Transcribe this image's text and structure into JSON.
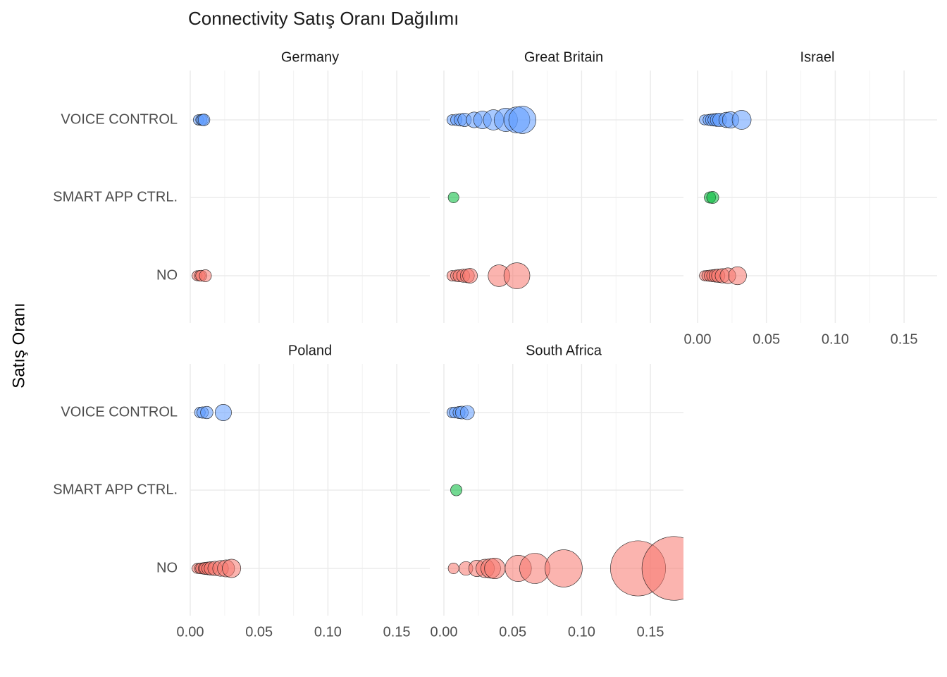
{
  "title": "Connectivity Satış Oranı Dağılımı",
  "ylabel": "Satış Oranı",
  "chart_data": [
    {
      "type": "scatter",
      "title": "Germany",
      "xlim": [
        0,
        0.174
      ],
      "xticks": [
        {
          "value": 0,
          "label": "0.00"
        },
        0.05,
        {
          "value": 0.1,
          "label": "0.10"
        },
        0.15
      ],
      "series": [
        {
          "name": "VOICE CONTROL",
          "color": "#619CFF",
          "values": [
            0.006,
            0.008,
            0.009,
            0.01
          ]
        },
        {
          "name": "SMART APP CTRL.",
          "color": "#00BA38",
          "values": []
        },
        {
          "name": "NO",
          "color": "#F8766D",
          "values": [
            0.005,
            0.007,
            0.008,
            0.011
          ]
        }
      ]
    },
    {
      "type": "scatter",
      "title": "Great Britain",
      "xlim": [
        0,
        0.174
      ],
      "xticks": [
        {
          "value": 0,
          "label": "0.00"
        },
        0.05,
        {
          "value": 0.1,
          "label": "0.10"
        },
        0.15
      ],
      "series": [
        {
          "name": "VOICE CONTROL",
          "color": "#619CFF",
          "values": [
            0.006,
            0.009,
            0.012,
            0.015,
            0.022,
            0.028,
            0.036,
            0.045,
            0.053,
            0.057
          ]
        },
        {
          "name": "SMART APP CTRL.",
          "color": "#00BA38",
          "values": [
            0.007
          ]
        },
        {
          "name": "NO",
          "color": "#F8766D",
          "values": [
            0.006,
            0.009,
            0.011,
            0.014,
            0.017,
            0.019,
            0.04,
            0.053
          ]
        }
      ]
    },
    {
      "type": "scatter",
      "title": "Israel",
      "xlim": [
        0,
        0.174
      ],
      "xticks": [
        {
          "value": 0,
          "label": "0.00"
        },
        0.05,
        {
          "value": 0.1,
          "label": "0.10"
        },
        0.15
      ],
      "series": [
        {
          "name": "VOICE CONTROL",
          "color": "#619CFF",
          "values": [
            0.005,
            0.008,
            0.01,
            0.012,
            0.014,
            0.016,
            0.021,
            0.024,
            0.032
          ]
        },
        {
          "name": "SMART APP CTRL.",
          "color": "#00BA38",
          "values": [
            0.009,
            0.011
          ]
        },
        {
          "name": "NO",
          "color": "#F8766D",
          "values": [
            0.005,
            0.007,
            0.009,
            0.011,
            0.013,
            0.015,
            0.018,
            0.022,
            0.029
          ]
        }
      ]
    },
    {
      "type": "scatter",
      "title": "Poland",
      "xlim": [
        0,
        0.174
      ],
      "xticks": [
        {
          "value": 0,
          "label": "0.00"
        },
        0.05,
        {
          "value": 0.1,
          "label": "0.10"
        },
        0.15
      ],
      "series": [
        {
          "name": "VOICE CONTROL",
          "color": "#619CFF",
          "values": [
            0.007,
            0.009,
            0.012,
            0.024
          ]
        },
        {
          "name": "SMART APP CTRL.",
          "color": "#00BA38",
          "values": []
        },
        {
          "name": "NO",
          "color": "#F8766D",
          "values": [
            0.005,
            0.007,
            0.008,
            0.01,
            0.011,
            0.013,
            0.015,
            0.018,
            0.022,
            0.026,
            0.03
          ]
        }
      ]
    },
    {
      "type": "scatter",
      "title": "South Africa",
      "xlim": [
        0,
        0.174
      ],
      "xticks": [
        {
          "value": 0,
          "label": "0.00"
        },
        0.05,
        {
          "value": 0.1,
          "label": "0.10"
        },
        0.15
      ],
      "series": [
        {
          "name": "VOICE CONTROL",
          "color": "#619CFF",
          "values": [
            0.006,
            0.008,
            0.011,
            0.013,
            0.017
          ]
        },
        {
          "name": "SMART APP CTRL.",
          "color": "#00BA38",
          "values": [
            0.009
          ]
        },
        {
          "name": "NO",
          "color": "#F8766D",
          "values": [
            0.007,
            0.016,
            0.024,
            0.03,
            0.034,
            0.037,
            0.054,
            0.066,
            0.087,
            0.141,
            0.167
          ]
        }
      ]
    }
  ]
}
